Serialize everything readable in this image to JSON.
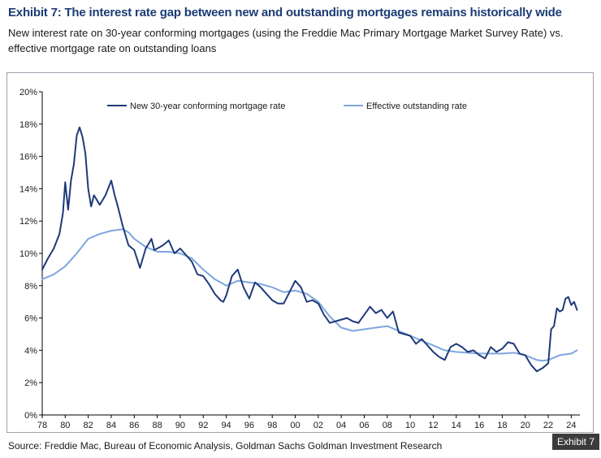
{
  "header": {
    "title": "Exhibit 7: The interest rate gap between new and outstanding mortgages remains historically wide",
    "subtitle": "New interest rate on 30-year conforming mortgages (using the Freddie Mac Primary Mortgage Market Survey Rate) vs. effective mortgage rate on outstanding loans"
  },
  "footer": {
    "source": "Source: Freddie Mac, Bureau of Economic Analysis, Goldman Sachs Goldman Investment Research",
    "tag": "Exhibit 7"
  },
  "colors": {
    "new_rate": "#1f3a7a",
    "effective_rate": "#7ea6e0",
    "axis": "#000000"
  },
  "chart_data": {
    "type": "line",
    "title": "",
    "xlabel": "",
    "ylabel": "",
    "xlim": [
      1978,
      2024.75
    ],
    "ylim": [
      0,
      20
    ],
    "grid": false,
    "legend": "top",
    "x_ticks": [
      1978,
      1980,
      1982,
      1984,
      1986,
      1988,
      1990,
      1992,
      1994,
      1996,
      1998,
      2000,
      2002,
      2004,
      2006,
      2008,
      2010,
      2012,
      2014,
      2016,
      2018,
      2020,
      2022,
      2024
    ],
    "x_tick_labels": [
      "78",
      "80",
      "82",
      "84",
      "86",
      "88",
      "90",
      "92",
      "94",
      "96",
      "98",
      "00",
      "02",
      "04",
      "06",
      "08",
      "10",
      "12",
      "14",
      "16",
      "18",
      "20",
      "22",
      "24"
    ],
    "y_ticks": [
      0,
      2,
      4,
      6,
      8,
      10,
      12,
      14,
      16,
      18,
      20
    ],
    "y_tick_labels": [
      "0%",
      "2%",
      "4%",
      "6%",
      "8%",
      "10%",
      "12%",
      "14%",
      "16%",
      "18%",
      "20%"
    ],
    "series": [
      {
        "name": "New 30-year conforming mortgage rate",
        "x": [
          1978,
          1978.5,
          1979,
          1979.5,
          1979.8,
          1980,
          1980.25,
          1980.5,
          1980.75,
          1981,
          1981.25,
          1981.5,
          1981.75,
          1982,
          1982.25,
          1982.5,
          1982.75,
          1983,
          1983.5,
          1984,
          1984.3,
          1984.5,
          1984.75,
          1985,
          1985.5,
          1986,
          1986.5,
          1987,
          1987.25,
          1987.5,
          1987.75,
          1988,
          1988.5,
          1989,
          1989.5,
          1990,
          1990.5,
          1991,
          1991.5,
          1992,
          1992.5,
          1993,
          1993.5,
          1993.75,
          1994,
          1994.5,
          1995,
          1995.5,
          1996,
          1996.5,
          1997,
          1997.5,
          1998,
          1998.5,
          1999,
          1999.5,
          2000,
          2000.5,
          2001,
          2001.5,
          2002,
          2002.5,
          2003,
          2003.5,
          2004,
          2004.5,
          2005,
          2005.5,
          2006,
          2006.5,
          2007,
          2007.5,
          2008,
          2008.5,
          2009,
          2009.5,
          2010,
          2010.5,
          2011,
          2011.5,
          2012,
          2012.5,
          2013,
          2013.5,
          2014,
          2014.5,
          2015,
          2015.5,
          2016,
          2016.5,
          2017,
          2017.5,
          2018,
          2018.5,
          2019,
          2019.5,
          2020,
          2020.5,
          2021,
          2021.5,
          2022,
          2022.25,
          2022.5,
          2022.75,
          2023,
          2023.25,
          2023.5,
          2023.75,
          2024,
          2024.25,
          2024.5
        ],
        "values": [
          9.0,
          9.7,
          10.3,
          11.2,
          12.5,
          14.4,
          12.7,
          14.5,
          15.5,
          17.3,
          17.8,
          17.2,
          16.2,
          14.0,
          12.9,
          13.6,
          13.3,
          13.0,
          13.6,
          14.5,
          13.6,
          13.1,
          12.4,
          11.7,
          10.5,
          10.2,
          9.1,
          10.3,
          10.6,
          10.9,
          10.2,
          10.3,
          10.5,
          10.8,
          10.0,
          10.3,
          9.9,
          9.5,
          8.7,
          8.6,
          8.1,
          7.5,
          7.1,
          7.0,
          7.4,
          8.6,
          9.0,
          7.9,
          7.2,
          8.2,
          7.9,
          7.5,
          7.1,
          6.9,
          6.9,
          7.6,
          8.3,
          7.9,
          7.0,
          7.1,
          6.9,
          6.2,
          5.7,
          5.8,
          5.9,
          6.0,
          5.8,
          5.7,
          6.2,
          6.7,
          6.3,
          6.5,
          6.0,
          6.4,
          5.1,
          5.0,
          4.9,
          4.4,
          4.7,
          4.3,
          3.9,
          3.6,
          3.4,
          4.2,
          4.4,
          4.2,
          3.9,
          4.0,
          3.7,
          3.5,
          4.2,
          3.9,
          4.1,
          4.5,
          4.4,
          3.8,
          3.7,
          3.1,
          2.7,
          2.9,
          3.2,
          5.3,
          5.5,
          6.6,
          6.4,
          6.5,
          7.2,
          7.3,
          6.8,
          7.0,
          6.5
        ],
        "color": "#1f3a7a"
      },
      {
        "name": "Effective outstanding rate",
        "x": [
          1978,
          1979,
          1980,
          1981,
          1982,
          1983,
          1984,
          1985,
          1985.5,
          1986,
          1987,
          1988,
          1989,
          1990,
          1991,
          1992,
          1993,
          1994,
          1995,
          1996,
          1997,
          1998,
          1999,
          2000,
          2001,
          2002,
          2003,
          2004,
          2005,
          2006,
          2007,
          2008,
          2009,
          2010,
          2011,
          2012,
          2013,
          2014,
          2015,
          2016,
          2017,
          2018,
          2019,
          2020,
          2021,
          2021.5,
          2022,
          2023,
          2024,
          2024.5
        ],
        "values": [
          8.4,
          8.7,
          9.2,
          10.0,
          10.9,
          11.2,
          11.4,
          11.5,
          11.3,
          10.9,
          10.4,
          10.1,
          10.1,
          10.0,
          9.7,
          9.0,
          8.4,
          8.0,
          8.3,
          8.2,
          8.1,
          7.9,
          7.6,
          7.7,
          7.5,
          7.0,
          6.1,
          5.4,
          5.2,
          5.3,
          5.4,
          5.5,
          5.2,
          4.9,
          4.6,
          4.3,
          4.0,
          3.9,
          3.85,
          3.8,
          3.8,
          3.8,
          3.85,
          3.7,
          3.4,
          3.35,
          3.4,
          3.7,
          3.8,
          4.0
        ],
        "color": "#7ea6e0"
      }
    ]
  }
}
